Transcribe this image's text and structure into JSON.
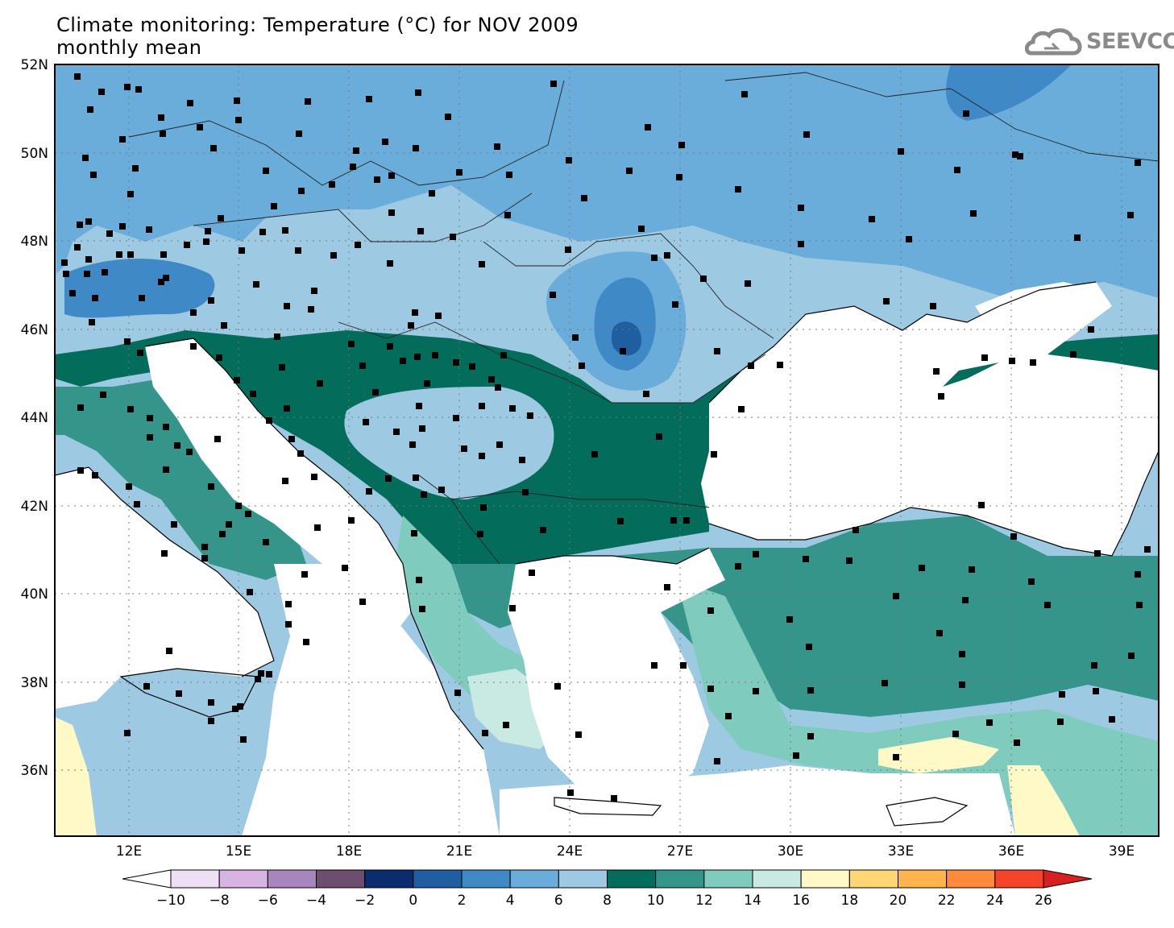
{
  "header": {
    "title_line1": "Climate monitoring: Temperature (°C) for NOV 2009",
    "title_line2": "monthly mean",
    "logo_text": "SEEVCCC",
    "logo_icon": "cloud-icon"
  },
  "map": {
    "lat_labels": [
      "52N",
      "50N",
      "48N",
      "46N",
      "44N",
      "42N",
      "40N",
      "38N",
      "36N"
    ],
    "lon_labels": [
      "12E",
      "15E",
      "18E",
      "21E",
      "24E",
      "27E",
      "30E",
      "33E",
      "36E",
      "39E"
    ],
    "colors": {
      "land_frame": "#000000",
      "water": "#ffffff",
      "stations": "#000000"
    }
  },
  "colorbar": {
    "ticks": [
      "-10",
      "-8",
      "-6",
      "-4",
      "-2",
      "0",
      "2",
      "4",
      "6",
      "8",
      "10",
      "12",
      "14",
      "16",
      "18",
      "20",
      "22",
      "24",
      "26"
    ],
    "colors": [
      "#ffffff",
      "#ede0f4",
      "#d7b4e2",
      "#a985be",
      "#6d4e6e",
      "#0b2c6e",
      "#1f5ea1",
      "#3f8ac6",
      "#6aaddb",
      "#9ec9e3",
      "#036c5b",
      "#35958a",
      "#7fcbbd",
      "#c9eae2",
      "#fff9c8",
      "#ffd673",
      "#ffb44e",
      "#ff8a3a",
      "#f54427",
      "#d82020"
    ]
  }
}
